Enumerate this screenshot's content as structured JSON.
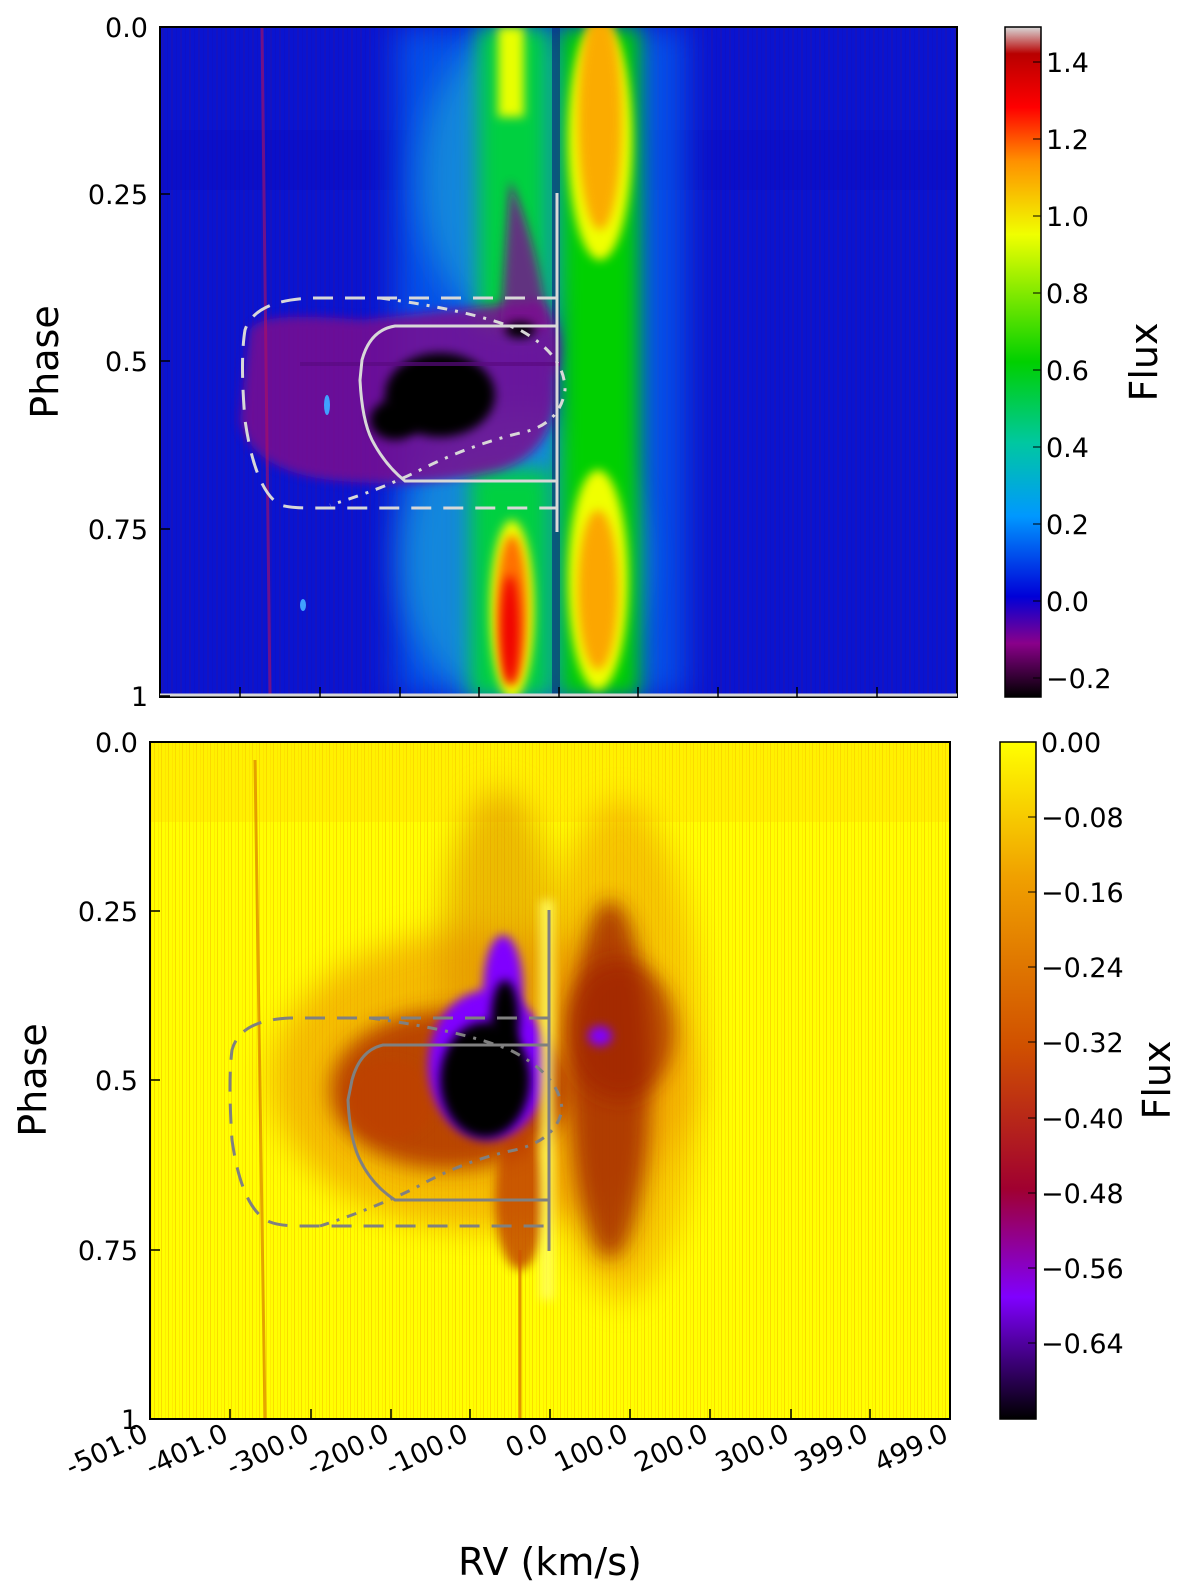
{
  "chart_data": [
    {
      "type": "heatmap",
      "panel": "top",
      "ylabel": "Phase",
      "yticks": [
        "0.0",
        "0.25",
        "0.5",
        "0.75",
        "1"
      ],
      "ytick_values": [
        0.0,
        0.25,
        0.5,
        0.75,
        1.0
      ],
      "xlim": [
        -501,
        499
      ],
      "ylim": [
        0.0,
        1.0
      ],
      "y_inverted": true,
      "colorbar": {
        "label": "Flux",
        "ticks": [
          "1.4",
          "1.2",
          "1.0",
          "0.8",
          "0.6",
          "0.4",
          "0.2",
          "0.0",
          "−0.2"
        ],
        "tick_values": [
          1.4,
          1.2,
          1.0,
          0.8,
          0.6,
          0.4,
          0.2,
          0.0,
          -0.2
        ],
        "range": [
          -0.26,
          1.5
        ],
        "colors": [
          "#000000",
          "#8a008a",
          "#0000d8",
          "#0098ff",
          "#00d070",
          "#00d000",
          "#f0ff00",
          "#ff9000",
          "#ff0000",
          "#d8d8d8"
        ]
      },
      "features": [
        {
          "name": "emission band A",
          "rv_center": -40,
          "description_free": true
        },
        {
          "name": "emission band B",
          "rv_center": 60
        },
        {
          "name": "absorption core",
          "rv_range": [
            -190,
            -60
          ],
          "phase_range": [
            0.47,
            0.62
          ]
        }
      ],
      "overlay_curves": {
        "solid_step": {
          "rv_vertical": 5,
          "phase_range": [
            0.25,
            0.75
          ]
        },
        "dashed_box": {
          "rv_min": -390,
          "phase_range": [
            0.41,
            0.72
          ]
        }
      }
    },
    {
      "type": "heatmap",
      "panel": "bottom",
      "ylabel": "Phase",
      "xlabel": "RV (km/s)",
      "xticks": [
        "-501.0",
        "-401.0",
        "-300.0",
        "-200.0",
        "-100.0",
        "0.0",
        "100.0",
        "200.0",
        "300.0",
        "399.0",
        "499.0"
      ],
      "xtick_values": [
        -501,
        -401,
        -300,
        -200,
        -100,
        0,
        100,
        200,
        300,
        399,
        499
      ],
      "yticks": [
        "0.0",
        "0.25",
        "0.5",
        "0.75",
        "1"
      ],
      "ytick_values": [
        0.0,
        0.25,
        0.5,
        0.75,
        1.0
      ],
      "xlim": [
        -501,
        499
      ],
      "ylim": [
        0.0,
        1.0
      ],
      "y_inverted": true,
      "colorbar": {
        "label": "Flux",
        "ticks": [
          "0.00",
          "−0.08",
          "−0.16",
          "−0.24",
          "−0.32",
          "−0.40",
          "−0.48",
          "−0.56",
          "−0.64"
        ],
        "tick_values": [
          0.0,
          -0.08,
          -0.16,
          -0.24,
          -0.32,
          -0.4,
          -0.48,
          -0.56,
          -0.64
        ],
        "range": [
          -0.72,
          0.0
        ],
        "colors": [
          "#000000",
          "#8000ff",
          "#a00030",
          "#d05000",
          "#f0a000",
          "#ffff00"
        ]
      },
      "features": [
        {
          "name": "absorption core",
          "rv_range": [
            -130,
            -30
          ],
          "phase_range": [
            0.42,
            0.6
          ]
        },
        {
          "name": "red wing",
          "rv_range": [
            30,
            150
          ],
          "phase_range": [
            0.35,
            0.8
          ]
        }
      ]
    }
  ]
}
